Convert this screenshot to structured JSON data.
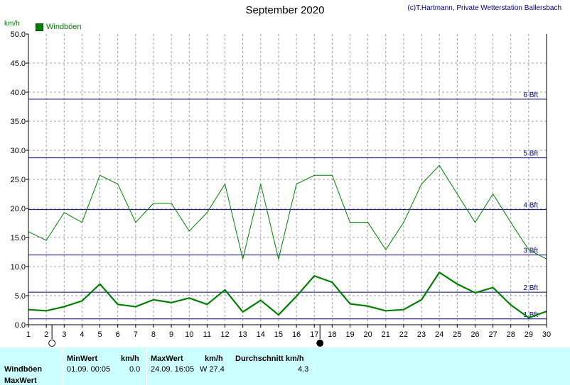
{
  "header": {
    "title": "September 2020",
    "credit": "(c)T.Hartmann, Private Wetterstation Ballersbach",
    "unit": "km/h"
  },
  "legend": {
    "label": "Windböen"
  },
  "chart_data": {
    "type": "line",
    "title": "September 2020",
    "ylabel": "km/h",
    "ylim": [
      0,
      50
    ],
    "xlim": [
      1,
      30
    ],
    "grid": true,
    "legend_position": "top-left",
    "y_ticks": [
      "0.0",
      "5.0",
      "10.0",
      "15.0",
      "20.0",
      "25.0",
      "30.0",
      "35.0",
      "40.0",
      "45.0",
      "50.0"
    ],
    "x": [
      1,
      2,
      3,
      4,
      5,
      6,
      7,
      8,
      9,
      10,
      11,
      12,
      13,
      14,
      15,
      16,
      17,
      18,
      19,
      20,
      21,
      22,
      23,
      24,
      25,
      26,
      27,
      28,
      29,
      30
    ],
    "series": [
      {
        "name": "Windböen",
        "color": "#008000",
        "values": [
          16.0,
          14.5,
          19.3,
          17.6,
          25.7,
          24.2,
          17.6,
          20.9,
          20.9,
          16.1,
          19.3,
          24.2,
          11.3,
          24.2,
          11.3,
          24.2,
          25.7,
          25.7,
          17.6,
          17.6,
          12.9,
          17.6,
          24.2,
          27.4,
          22.5,
          17.6,
          22.5,
          17.6,
          12.9,
          11.3
        ]
      },
      {
        "color": "#008000",
        "values": [
          2.6,
          2.4,
          3.1,
          4.1,
          7.0,
          3.5,
          3.1,
          4.3,
          3.8,
          4.6,
          3.5,
          6.0,
          2.2,
          4.2,
          1.7,
          4.9,
          8.4,
          7.3,
          3.6,
          3.2,
          2.4,
          2.6,
          4.3,
          9.0,
          7.0,
          5.5,
          6.4,
          3.4,
          1.2,
          2.3
        ]
      }
    ],
    "reference_lines": [
      {
        "label": "1 Bft",
        "value": 1.0,
        "color": "#000080"
      },
      {
        "label": "2 Bft",
        "value": 5.6,
        "color": "#000080"
      },
      {
        "label": "3 Bft",
        "value": 12.0,
        "color": "#000080"
      },
      {
        "label": "4 Bft",
        "value": 19.8,
        "color": "#000080"
      },
      {
        "label": "5 Bft",
        "value": 28.7,
        "color": "#000080"
      },
      {
        "label": "6 Bft",
        "value": 38.8,
        "color": "#000080"
      }
    ],
    "moon_markers": [
      {
        "day": 2,
        "phase": "full-moon"
      },
      {
        "day": 17,
        "phase": "new-moon"
      }
    ]
  },
  "stats": {
    "row_label_1": "Windböen",
    "row_label_2": "MaxWert",
    "min_header": "MinWert",
    "min_unit": "km/h",
    "min_date": "01.09.  00:05",
    "min_value": "0.0",
    "max_header": "MaxWert",
    "max_unit": "km/h",
    "max_date": "24.09.  16:05",
    "max_value": "W 27.4",
    "avg_header": "Durchschnitt km/h",
    "avg_value": "4.3"
  }
}
